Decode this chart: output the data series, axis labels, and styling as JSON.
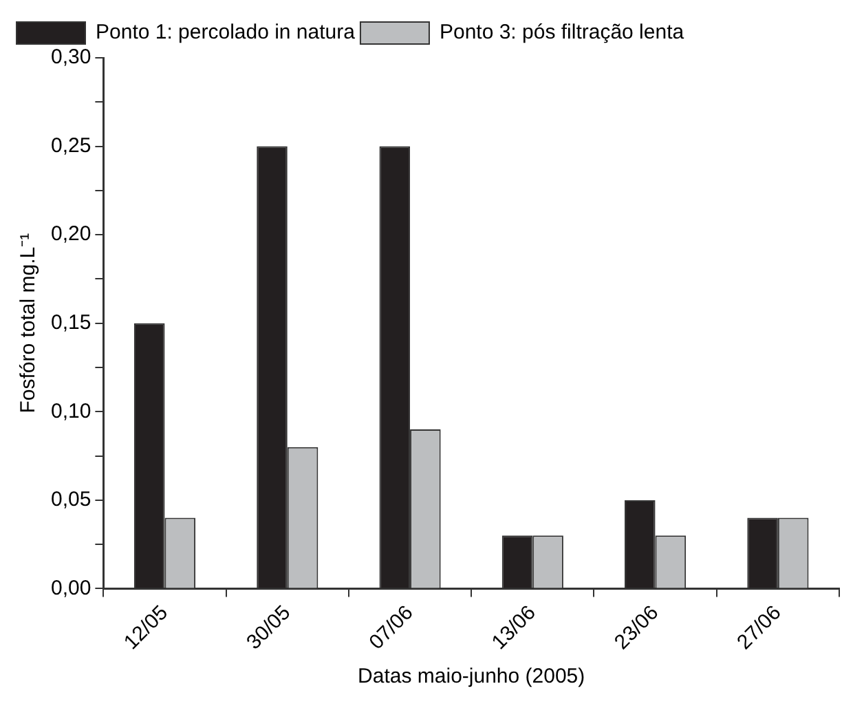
{
  "chart_data": {
    "type": "bar",
    "xlabel": "Datas maio-junho (2005)",
    "ylabel": "Fosfóro total mg.L⁻¹",
    "categories": [
      "12/05",
      "30/05",
      "07/06",
      "13/06",
      "23/06",
      "27/06"
    ],
    "series": [
      {
        "name": "Ponto 1: percolado in natura",
        "color": "#231f20",
        "values": [
          0.15,
          0.25,
          0.25,
          0.03,
          0.05,
          0.04
        ]
      },
      {
        "name": "Ponto 3: pós filtração lenta",
        "color": "#bcbec0",
        "values": [
          0.04,
          0.08,
          0.09,
          0.03,
          0.03,
          0.04
        ]
      }
    ],
    "ylim": [
      0,
      0.3
    ],
    "yticks": [
      {
        "value": 0,
        "label": "0,00"
      },
      {
        "value": 0.025,
        "label": null
      },
      {
        "value": 0.05,
        "label": "0,05"
      },
      {
        "value": 0.075,
        "label": null
      },
      {
        "value": 0.1,
        "label": "0,10"
      },
      {
        "value": 0.125,
        "label": null
      },
      {
        "value": 0.15,
        "label": "0,15"
      },
      {
        "value": 0.175,
        "label": null
      },
      {
        "value": 0.2,
        "label": "0,20"
      },
      {
        "value": 0.225,
        "label": null
      },
      {
        "value": 0.25,
        "label": "0,25"
      },
      {
        "value": 0.275,
        "label": null
      },
      {
        "value": 0.3,
        "label": "0,30"
      }
    ],
    "legend": "top left"
  }
}
